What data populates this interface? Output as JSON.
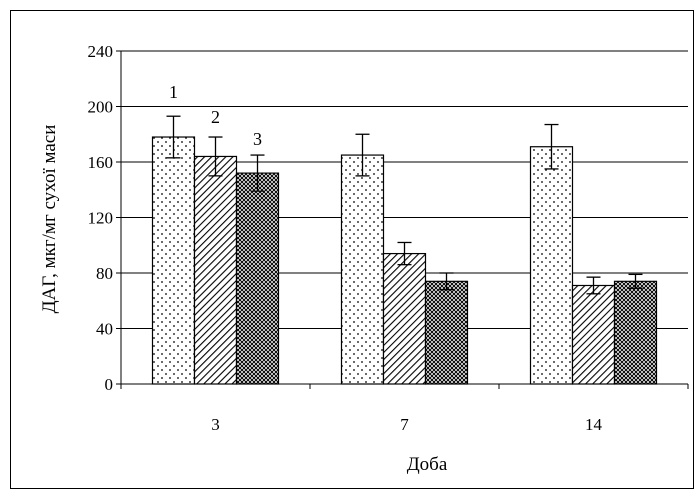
{
  "chart_data": {
    "type": "bar",
    "title": "",
    "xlabel": "Доба",
    "ylabel": "ДАГ, мкг/мг сухої маси",
    "categories": [
      "3",
      "7",
      "14"
    ],
    "ylim": [
      0,
      240
    ],
    "yticks": [
      0,
      40,
      80,
      120,
      160,
      200,
      240
    ],
    "grid": true,
    "series": [
      {
        "name": "1",
        "pattern": "dots",
        "values": [
          178,
          165,
          171
        ],
        "errors": [
          15,
          15,
          16
        ]
      },
      {
        "name": "2",
        "pattern": "diagonal-hatch",
        "values": [
          164,
          94,
          71
        ],
        "errors": [
          14,
          8,
          6
        ]
      },
      {
        "name": "3",
        "pattern": "crosshatch",
        "values": [
          152,
          74,
          74
        ],
        "errors": [
          13,
          6,
          5
        ]
      }
    ],
    "series_labels_position": "above first category bars"
  }
}
